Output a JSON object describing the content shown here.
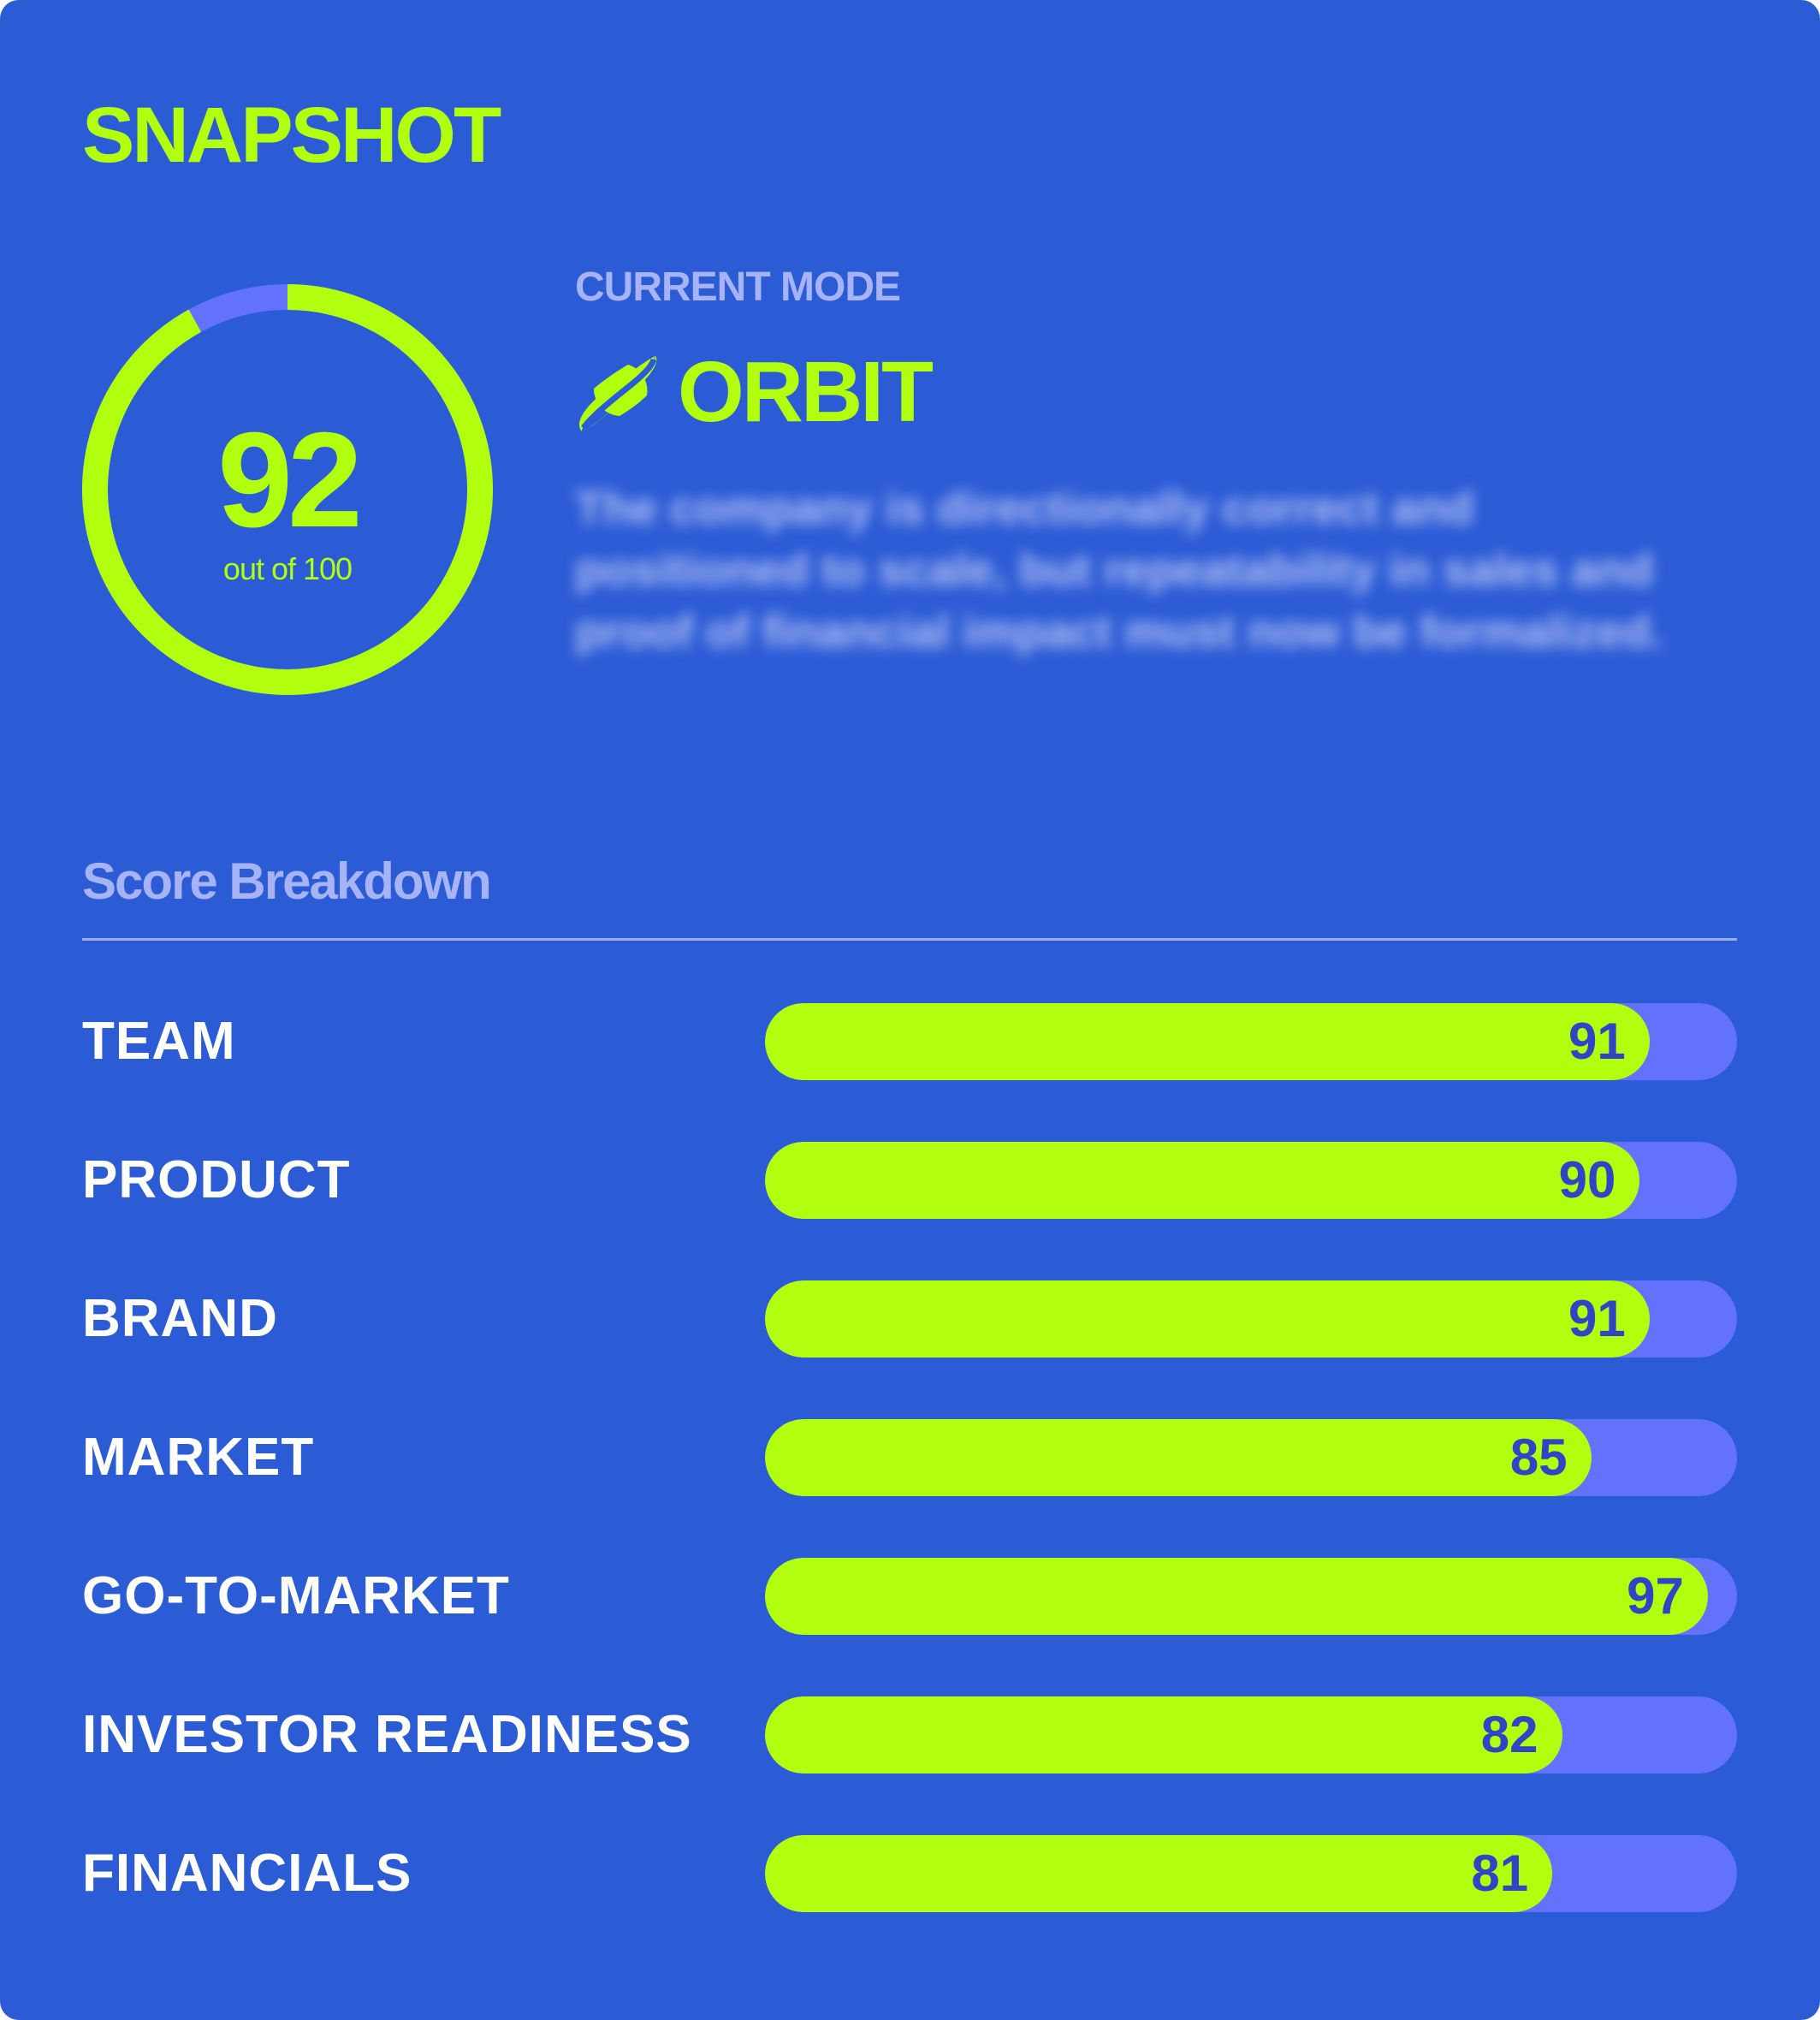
{
  "title": "SNAPSHOT",
  "score": {
    "value": "92",
    "subtitle": "out of 100",
    "fraction": 0.92
  },
  "mode": {
    "label": "CURRENT MODE",
    "name": "ORBIT",
    "icon": "planet-icon",
    "description": "The company is directionally correct and positioned to scale, but repeatability in sales and proof of financial impact must now be formalized."
  },
  "breakdown": {
    "heading": "Score Breakdown",
    "max": 100,
    "items": [
      {
        "label": "TEAM",
        "value": 91
      },
      {
        "label": "PRODUCT",
        "value": 90
      },
      {
        "label": "BRAND",
        "value": 91
      },
      {
        "label": "MARKET",
        "value": 85
      },
      {
        "label": "GO-TO-MARKET",
        "value": 97
      },
      {
        "label": "INVESTOR READINESS",
        "value": 82
      },
      {
        "label": "FINANCIALS",
        "value": 81
      }
    ]
  },
  "colors": {
    "background": "#2c5bd6",
    "accent": "#b1ff0f",
    "track": "#6272fd",
    "muted_label": "#a6b3f6",
    "value_text": "#2f45c6"
  }
}
